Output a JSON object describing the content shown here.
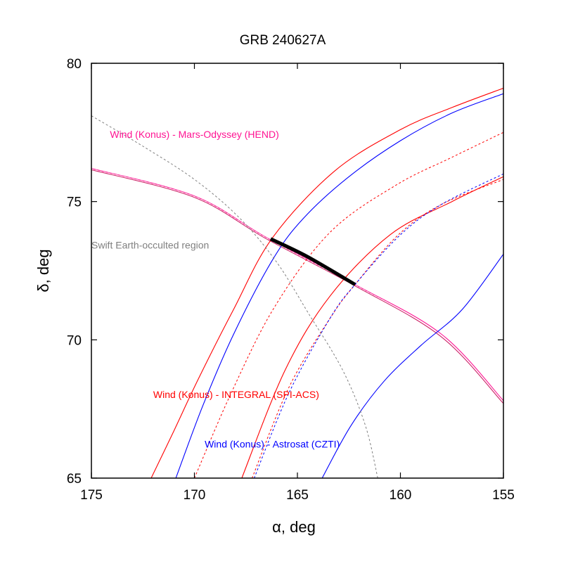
{
  "chart_data": {
    "type": "line",
    "title": "GRB 240627A",
    "xlabel": "α, deg",
    "ylabel": "δ, deg",
    "xlim": [
      175,
      155
    ],
    "ylim": [
      65,
      80
    ],
    "x_reversed": true,
    "grid": false,
    "x_ticks": [
      175,
      170,
      165,
      160,
      155
    ],
    "y_ticks": [
      65,
      70,
      75,
      80
    ],
    "series": [
      {
        "name": "Wind (Konus) - Mars-Odyssey (HEND)",
        "color": "#ff1493",
        "lines": [
          {
            "style": "solid",
            "points": [
              [
                175,
                76.2
              ],
              [
                170,
                75.2
              ],
              [
                166.5,
                73.7
              ],
              [
                162.2,
                72.0
              ],
              [
                158,
                70.2
              ],
              [
                155,
                67.8
              ]
            ]
          },
          {
            "style": "solid",
            "color": "#cc2266",
            "points": [
              [
                175,
                76.15
              ],
              [
                170,
                75.15
              ],
              [
                166.5,
                73.65
              ],
              [
                162.2,
                71.95
              ],
              [
                158,
                70.1
              ],
              [
                155,
                67.7
              ]
            ]
          },
          {
            "style": "dashed",
            "color": "#ffffff",
            "points": [
              [
                175,
                76.18
              ],
              [
                170,
                75.18
              ],
              [
                166.5,
                73.68
              ],
              [
                162.2,
                71.98
              ],
              [
                158,
                70.15
              ],
              [
                155,
                67.75
              ]
            ]
          }
        ]
      },
      {
        "name": "Wind (Konus) -  INTEGRAL (SPI-ACS)",
        "color": "#ff0000",
        "lines": [
          {
            "style": "solid",
            "points": [
              [
                172.1,
                65
              ],
              [
                171.0,
                66.7
              ],
              [
                169.8,
                68.6
              ],
              [
                168.1,
                71.1
              ],
              [
                166.2,
                73.7
              ],
              [
                163.2,
                76.1
              ],
              [
                160.0,
                77.6
              ],
              [
                157.5,
                78.4
              ],
              [
                155,
                79.1
              ]
            ]
          },
          {
            "style": "dashed",
            "points": [
              [
                170.0,
                65
              ],
              [
                168.2,
                68.1
              ],
              [
                166.1,
                71.2
              ],
              [
                163.4,
                73.9
              ],
              [
                160.2,
                75.6
              ],
              [
                157.5,
                76.6
              ],
              [
                155,
                77.5
              ]
            ]
          },
          {
            "style": "solid",
            "points": [
              [
                167.7,
                65
              ],
              [
                165.6,
                68.9
              ],
              [
                163.4,
                71.6
              ],
              [
                160.5,
                73.8
              ],
              [
                157.5,
                75.0
              ],
              [
                155,
                75.9
              ]
            ]
          },
          {
            "style": "dashed",
            "points": [
              [
                167.2,
                65
              ],
              [
                165.4,
                68.3
              ],
              [
                163.4,
                70.8
              ],
              [
                162.2,
                72.0
              ],
              [
                160.1,
                73.8
              ],
              [
                158.0,
                74.9
              ],
              [
                155,
                75.8
              ]
            ]
          }
        ]
      },
      {
        "name": "Wind (Konus) - Astrosat (CZTI)",
        "color": "#0000ff",
        "lines": [
          {
            "style": "solid",
            "points": [
              [
                170.9,
                65
              ],
              [
                169.6,
                67.6
              ],
              [
                168.1,
                70.2
              ],
              [
                166.2,
                72.9
              ],
              [
                164.7,
                74.4
              ],
              [
                162.5,
                75.9
              ],
              [
                160.0,
                77.2
              ],
              [
                157.5,
                78.2
              ],
              [
                155,
                78.9
              ]
            ]
          },
          {
            "style": "dashed",
            "points": [
              [
                167.1,
                65
              ],
              [
                165.4,
                68.1
              ],
              [
                163.4,
                70.8
              ],
              [
                162.2,
                72.0
              ],
              [
                160.0,
                73.8
              ],
              [
                158.0,
                74.9
              ],
              [
                155,
                76.0
              ]
            ]
          },
          {
            "style": "solid",
            "points": [
              [
                163.8,
                65
              ],
              [
                162.4,
                66.9
              ],
              [
                160.8,
                68.5
              ],
              [
                159.0,
                69.8
              ],
              [
                157.0,
                71.1
              ],
              [
                155,
                73.1
              ]
            ]
          }
        ]
      },
      {
        "name": "Swift Earth-occulted region",
        "color": "#808080",
        "lines": [
          {
            "style": "dashed",
            "points": [
              [
                175,
                78.1
              ],
              [
                172.5,
                77.0
              ],
              [
                170.0,
                75.8
              ],
              [
                167.8,
                74.4
              ],
              [
                166.0,
                72.8
              ],
              [
                164.5,
                71.0
              ],
              [
                162.8,
                68.9
              ],
              [
                161.7,
                66.9
              ],
              [
                161.1,
                65.0
              ]
            ]
          }
        ]
      }
    ],
    "localization_segment": {
      "color": "#000000",
      "points": [
        [
          166.3,
          73.65
        ],
        [
          164.5,
          73.0
        ],
        [
          162.2,
          72.0
        ]
      ]
    },
    "annotations": [
      {
        "text": "Wind (Konus) - Mars-Odyssey (HEND)",
        "color": "#ff1493",
        "at": [
          174.1,
          77.3
        ]
      },
      {
        "text": "Swift Earth-occulted region",
        "color": "#808080",
        "at": [
          175.0,
          73.3
        ]
      },
      {
        "text": "Wind (Konus) -  INTEGRAL (SPI-ACS)",
        "color": "#ff0000",
        "at": [
          172.0,
          67.9
        ]
      },
      {
        "text": "Wind (Konus) - Astrosat (CZTI)",
        "color": "#0000ff",
        "at": [
          169.5,
          66.1
        ]
      }
    ]
  }
}
